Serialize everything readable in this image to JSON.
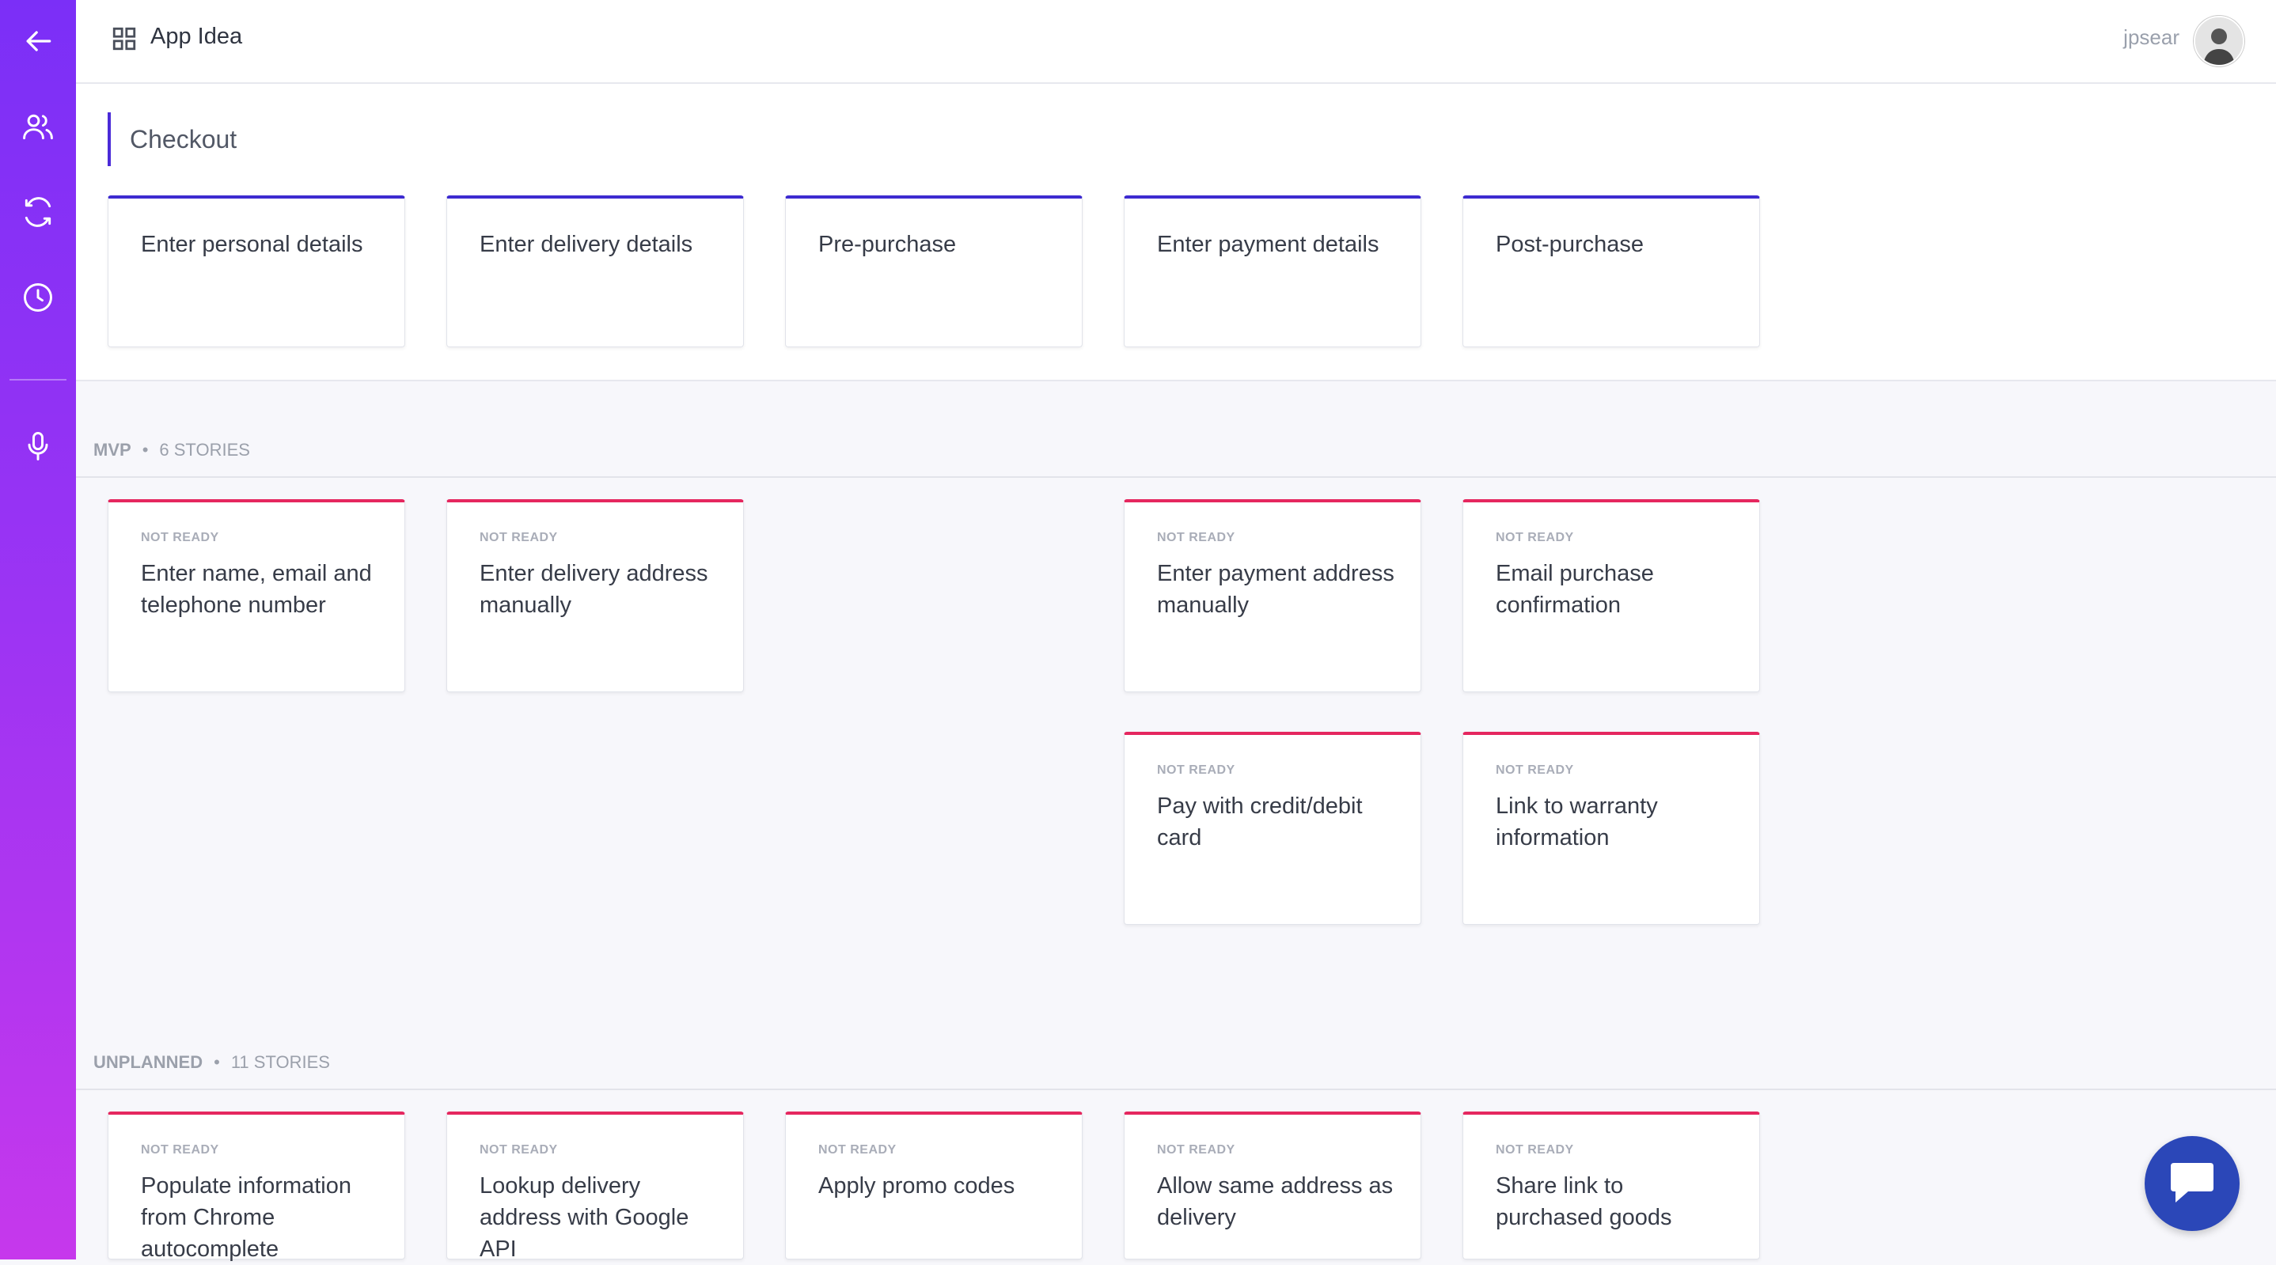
{
  "app": {
    "title": "App Idea",
    "username": "jpsear"
  },
  "sidebar": {
    "items": [
      {
        "icon": "back-arrow-icon"
      },
      {
        "icon": "users-icon"
      },
      {
        "icon": "sync-icon"
      },
      {
        "icon": "clock-icon"
      },
      {
        "icon": "microphone-icon"
      }
    ]
  },
  "activity": {
    "title": "Checkout",
    "steps": [
      "Enter personal details",
      "Enter delivery details",
      "Pre-purchase",
      "Enter payment details",
      "Post-purchase"
    ]
  },
  "releases": [
    {
      "name": "MVP",
      "count": "6 STORIES",
      "stories": [
        {
          "status": "NOT READY",
          "title": "Enter name, email and telephone number"
        },
        {
          "status": "NOT READY",
          "title": "Enter delivery address manually"
        },
        {
          "status": "NOT READY",
          "title": "Enter payment address manually"
        },
        {
          "status": "NOT READY",
          "title": "Email purchase confirmation"
        },
        {
          "status": "NOT READY",
          "title": "Pay with credit/debit card"
        },
        {
          "status": "NOT READY",
          "title": "Link to warranty information"
        }
      ]
    },
    {
      "name": "UNPLANNED",
      "count": "11 STORIES",
      "stories": [
        {
          "status": "NOT READY",
          "title": "Populate information from Chrome autocomplete"
        },
        {
          "status": "NOT READY",
          "title": "Lookup delivery address with Google API"
        },
        {
          "status": "NOT READY",
          "title": "Apply promo codes"
        },
        {
          "status": "NOT READY",
          "title": "Allow same address as delivery"
        },
        {
          "status": "NOT READY",
          "title": "Share link to purchased goods"
        }
      ]
    }
  ],
  "colors": {
    "sidebar_top": "#7b2ff7",
    "sidebar_bottom": "#c638ec",
    "step_accent": "#3d2bd0",
    "story_accent": "#e5275f",
    "chat_button": "#2b47b8"
  }
}
